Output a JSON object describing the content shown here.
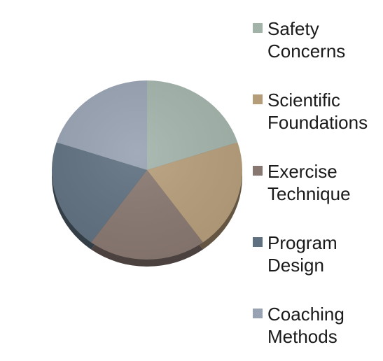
{
  "chart_data": {
    "type": "pie",
    "title": "",
    "categories": [
      "Safety Concerns",
      "Scientific Foundations",
      "Exercise Technique",
      "Program Design",
      "Coaching Methods"
    ],
    "legend_lines": [
      [
        "Safety",
        "Concerns"
      ],
      [
        "Scientific",
        "Foundations"
      ],
      [
        "Exercise",
        "Technique"
      ],
      [
        "Program",
        "Design"
      ],
      [
        "Coaching",
        "Methods"
      ]
    ],
    "values": [
      20,
      20,
      20,
      20,
      20
    ],
    "colors": [
      "#a2b3aa",
      "#b59d7a",
      "#887770",
      "#5f7080",
      "#97a2b2"
    ],
    "legend_position": "right"
  }
}
